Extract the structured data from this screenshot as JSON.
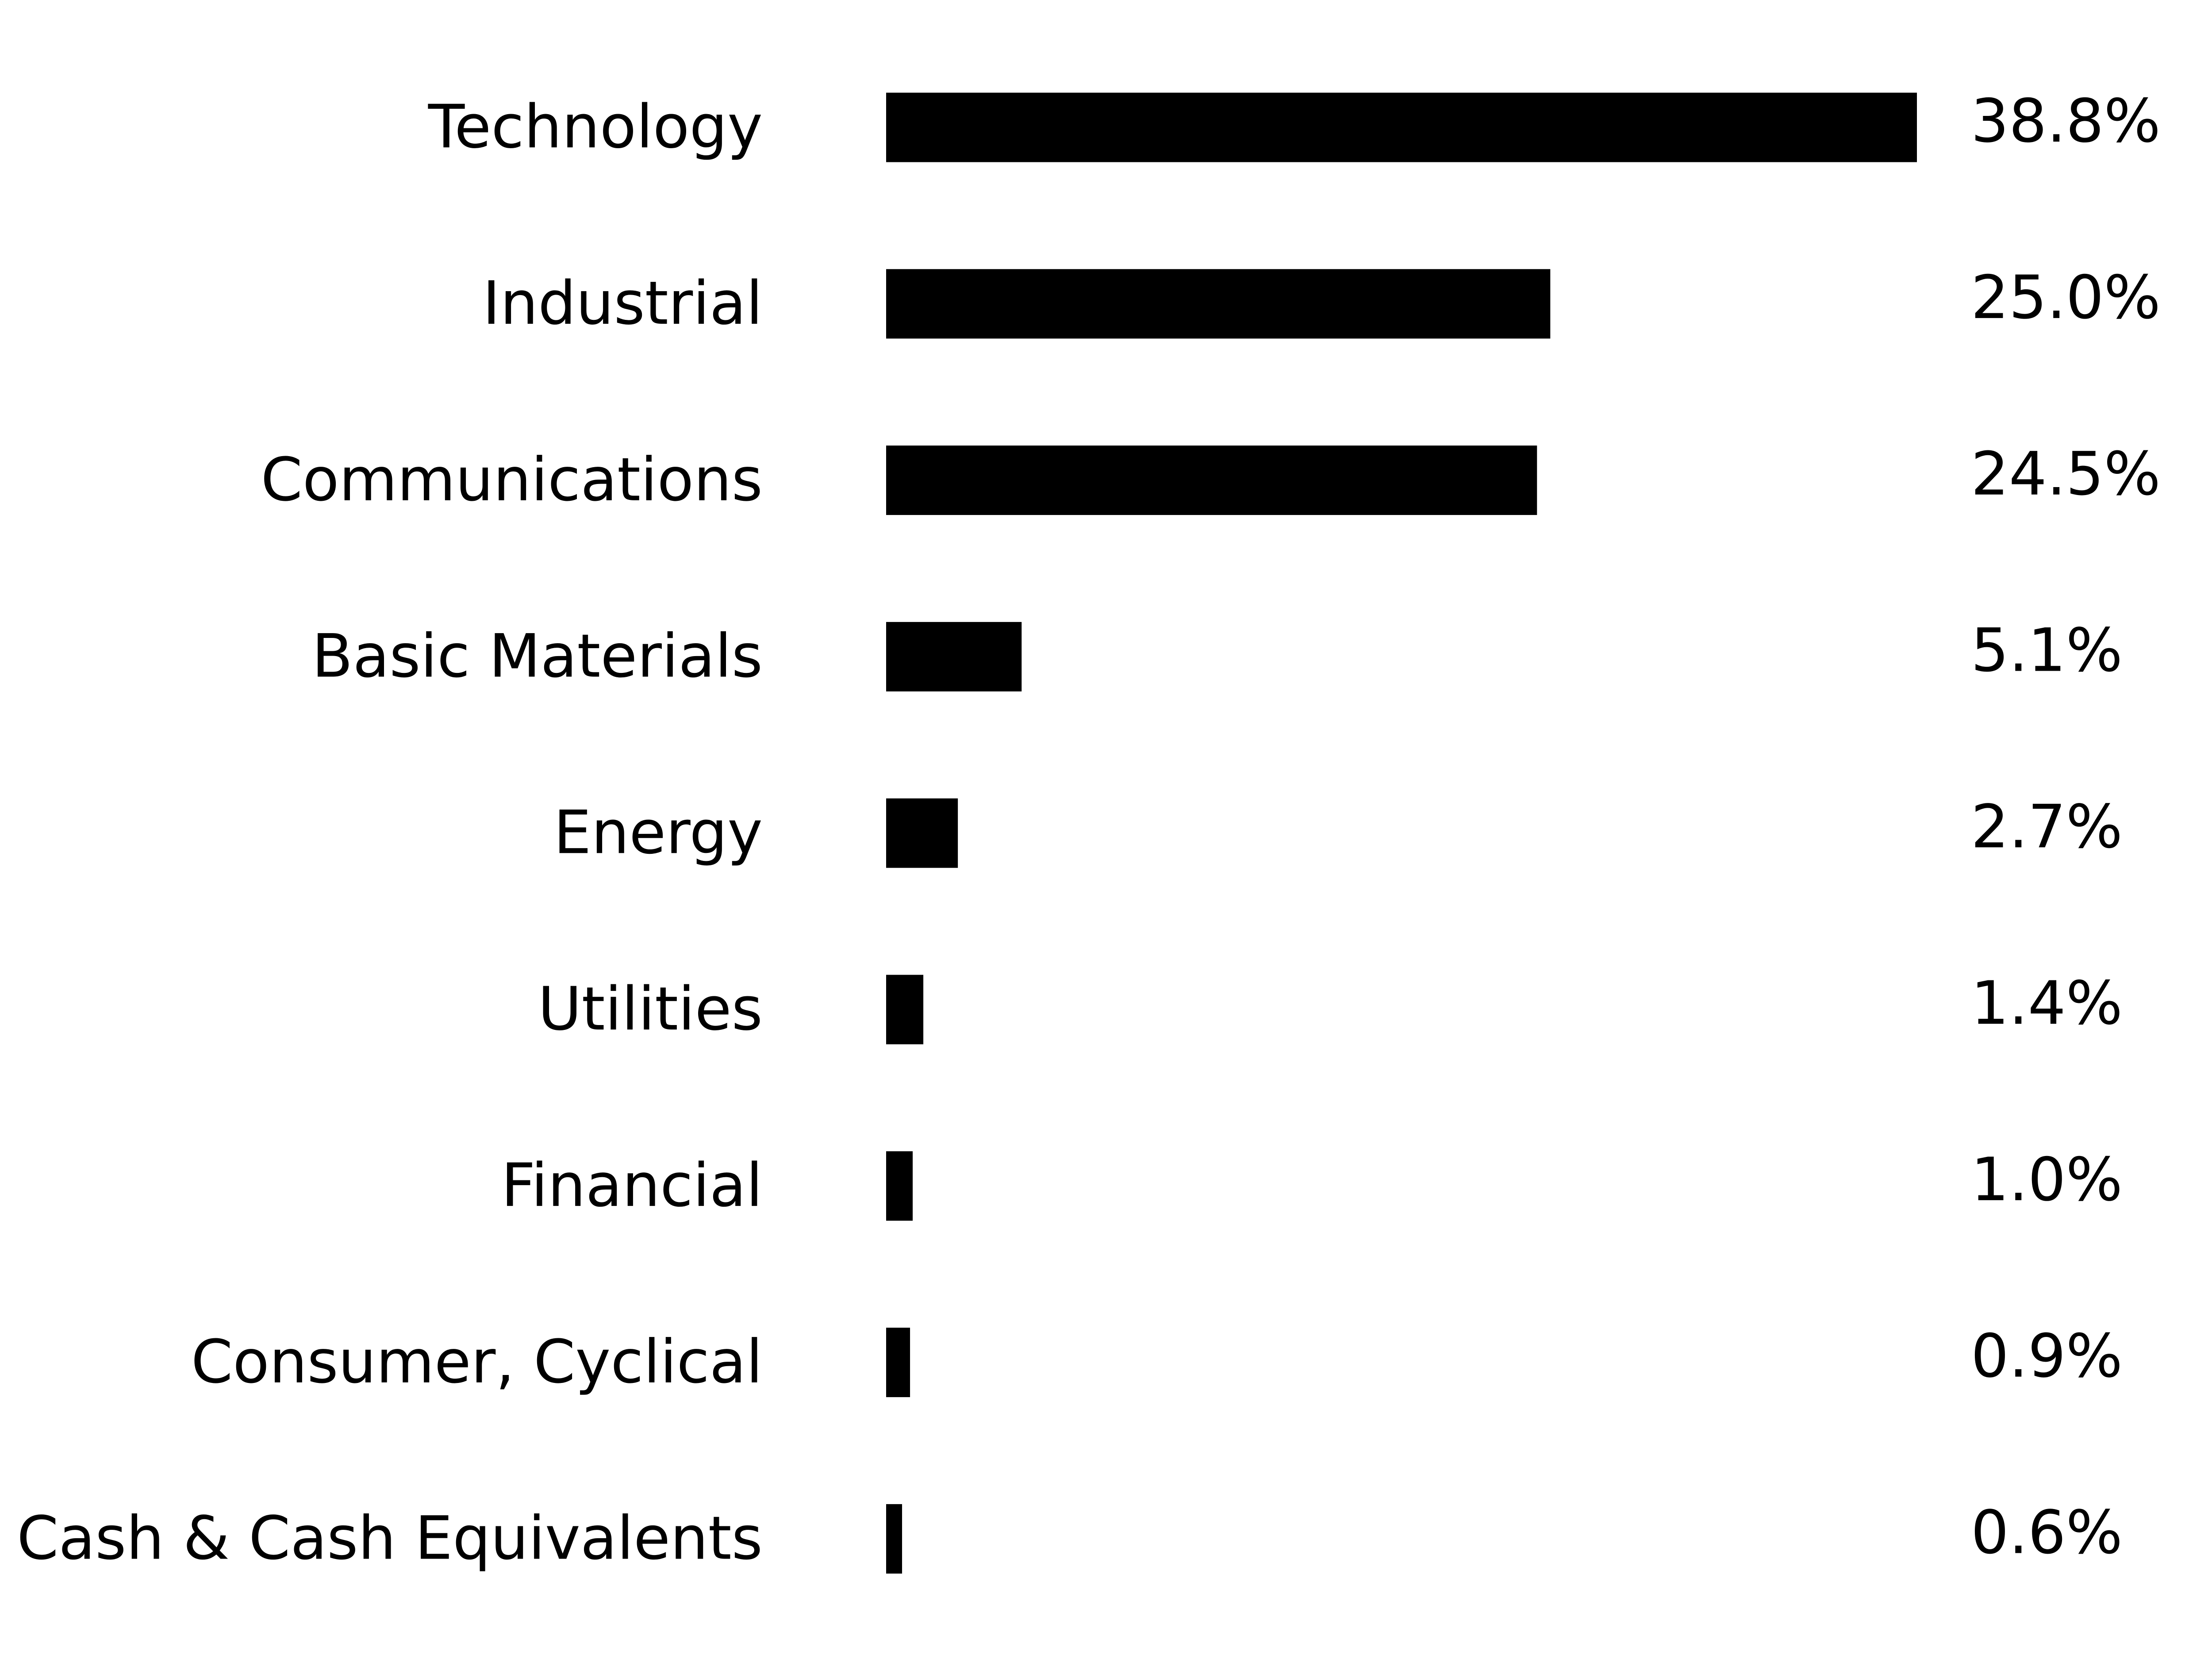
{
  "chart_data": {
    "type": "bar",
    "orientation": "horizontal",
    "categories": [
      "Technology",
      "Industrial",
      "Communications",
      "Basic Materials",
      "Energy",
      "Utilities",
      "Financial",
      "Consumer, Cyclical",
      "Cash & Cash Equivalents"
    ],
    "values": [
      38.8,
      25.0,
      24.5,
      5.1,
      2.7,
      1.4,
      1.0,
      0.9,
      0.6
    ],
    "value_labels": [
      "38.8%",
      "25.0%",
      "24.5%",
      "5.1%",
      "2.7%",
      "1.4%",
      "1.0%",
      "0.9%",
      "0.6%"
    ],
    "color": "#000000"
  }
}
